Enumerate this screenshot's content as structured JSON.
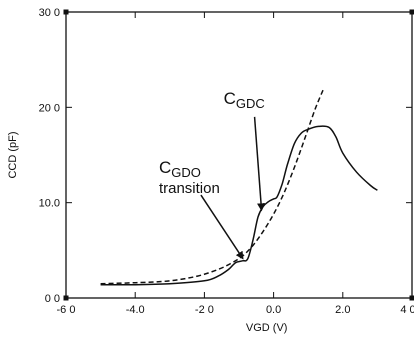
{
  "chart_data": {
    "type": "line",
    "xlabel": "VGD (V)",
    "ylabel": "CCD (pF)",
    "xlim": [
      -6.0,
      4.0
    ],
    "ylim": [
      0,
      30
    ],
    "x_ticks": [
      {
        "value": -6.0,
        "label": "-6 0"
      },
      {
        "value": -4.0,
        "label": "-4.0"
      },
      {
        "value": -2.0,
        "label": "-2 0"
      },
      {
        "value": 0.0,
        "label": "0.0"
      },
      {
        "value": 2.0,
        "label": "2.0"
      },
      {
        "value": 4.0,
        "label": "4 0"
      }
    ],
    "y_ticks": [
      {
        "value": 0,
        "label": "0 0"
      },
      {
        "value": 10,
        "label": "10.0"
      },
      {
        "value": 20,
        "label": "20 0"
      },
      {
        "value": 30,
        "label": "30 0"
      }
    ],
    "grid": false,
    "series": [
      {
        "style": "solid",
        "points": [
          [
            -5.0,
            1.4
          ],
          [
            -4.0,
            1.4
          ],
          [
            -3.0,
            1.5
          ],
          [
            -2.0,
            1.8
          ],
          [
            -1.6,
            2.3
          ],
          [
            -1.3,
            3.0
          ],
          [
            -1.1,
            3.7
          ],
          [
            -0.9,
            3.9
          ],
          [
            -0.75,
            4.1
          ],
          [
            -0.6,
            6.0
          ],
          [
            -0.45,
            8.5
          ],
          [
            -0.3,
            9.6
          ],
          [
            -0.15,
            10.1
          ],
          [
            0.0,
            10.4
          ],
          [
            0.1,
            10.6
          ],
          [
            0.25,
            12.0
          ],
          [
            0.4,
            14.0
          ],
          [
            0.6,
            16.2
          ],
          [
            0.8,
            17.3
          ],
          [
            1.0,
            17.7
          ],
          [
            1.3,
            18.0
          ],
          [
            1.6,
            17.9
          ],
          [
            1.8,
            16.9
          ],
          [
            2.0,
            15.2
          ],
          [
            2.4,
            13.2
          ],
          [
            2.8,
            11.8
          ],
          [
            3.0,
            11.3
          ]
        ]
      },
      {
        "style": "dashed",
        "points": [
          [
            -5.0,
            1.5
          ],
          [
            -4.0,
            1.6
          ],
          [
            -3.0,
            1.8
          ],
          [
            -2.2,
            2.3
          ],
          [
            -1.6,
            3.0
          ],
          [
            -1.2,
            3.7
          ],
          [
            -0.9,
            4.4
          ],
          [
            -0.6,
            5.5
          ],
          [
            -0.3,
            7.0
          ],
          [
            0.0,
            8.8
          ],
          [
            0.3,
            11.0
          ],
          [
            0.6,
            13.7
          ],
          [
            0.9,
            16.7
          ],
          [
            1.2,
            19.8
          ],
          [
            1.45,
            22.0
          ]
        ]
      }
    ],
    "annotations": [
      {
        "id": "cgdc",
        "main": "C",
        "sub": "GDC",
        "arrow_from": [
          -0.55,
          19.0
        ],
        "arrow_to": [
          -0.35,
          9.3
        ]
      },
      {
        "id": "cgdo",
        "main": "C",
        "sub": "GDO",
        "line2": "transition",
        "arrow_from": [
          -2.1,
          10.8
        ],
        "arrow_to": [
          -0.9,
          4.2
        ]
      }
    ]
  }
}
